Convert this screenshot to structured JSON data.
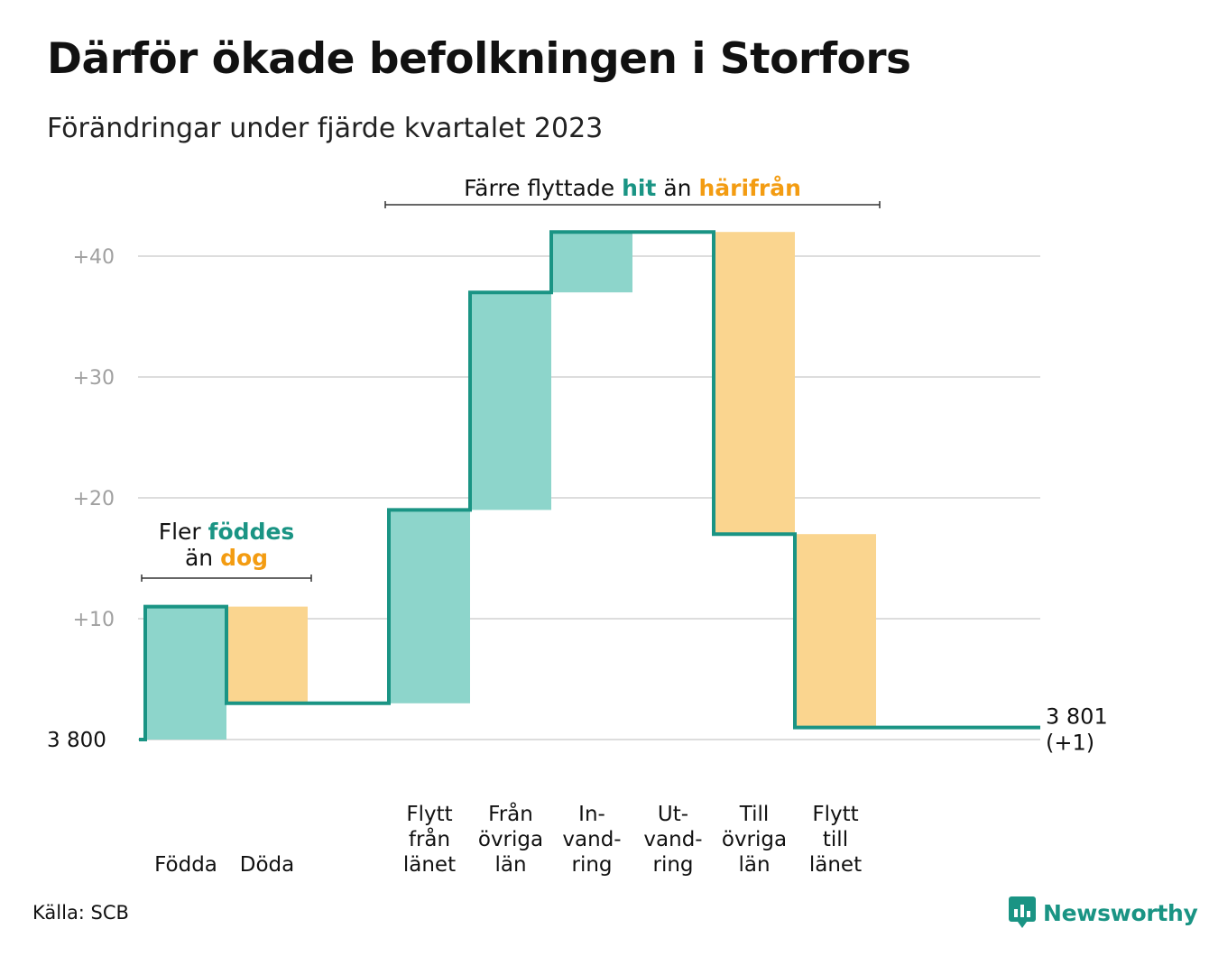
{
  "title": "Därför ökade befolkningen i Storfors",
  "subtitle": "Förändringar under fjärde kvartalet 2023",
  "source": "Källa: SCB",
  "brand": "Newsworthy",
  "colors": {
    "increase_fill": "#8dd5cb",
    "decrease_fill": "#fad58f",
    "line": "#1a9484",
    "teal_text": "#1a9484",
    "orange_text": "#f39c12",
    "grid": "#dddddd",
    "tick": "#a0a0a0"
  },
  "chart_data": {
    "type": "bar",
    "subtype": "waterfall",
    "start_value": 3800,
    "start_label": "3  800",
    "end_value": 3801,
    "end_label": "3 801",
    "end_change_label": "(+1)",
    "ylim": [
      0,
      43
    ],
    "yticks": [
      {
        "value": 10,
        "label": "+10"
      },
      {
        "value": 20,
        "label": "+20"
      },
      {
        "value": 30,
        "label": "+30"
      },
      {
        "value": 40,
        "label": "+40"
      }
    ],
    "categories": [
      {
        "label": "Födda",
        "change": 11
      },
      {
        "label": "Döda",
        "change": -8
      },
      {
        "label": "",
        "change": 0
      },
      {
        "label": "Flytt\nfrån\nlänet",
        "change": 16
      },
      {
        "label": "Från\növriga\nlän",
        "change": 18
      },
      {
        "label": "In-\nvand-\nring",
        "change": 5
      },
      {
        "label": "Ut-\nvand-\nring",
        "change": 0
      },
      {
        "label": "Till\növriga\nlän",
        "change": -25
      },
      {
        "label": "Flytt\ntill\nlänet",
        "change": -16
      }
    ],
    "annotations": [
      {
        "id": "birth-death",
        "from_index": 0,
        "to_index": 1,
        "lines": [
          [
            {
              "text": "Fler ",
              "style": "plain"
            },
            {
              "text": "föddes",
              "style": "teal"
            }
          ],
          [
            {
              "text": "än ",
              "style": "plain"
            },
            {
              "text": "dog",
              "style": "orange"
            }
          ]
        ]
      },
      {
        "id": "migration",
        "from_index": 3,
        "to_index": 8,
        "lines": [
          [
            {
              "text": "Färre flyttade ",
              "style": "plain"
            },
            {
              "text": "hit",
              "style": "teal"
            },
            {
              "text": " än ",
              "style": "plain"
            },
            {
              "text": "härifrån",
              "style": "orange"
            }
          ]
        ]
      }
    ]
  }
}
